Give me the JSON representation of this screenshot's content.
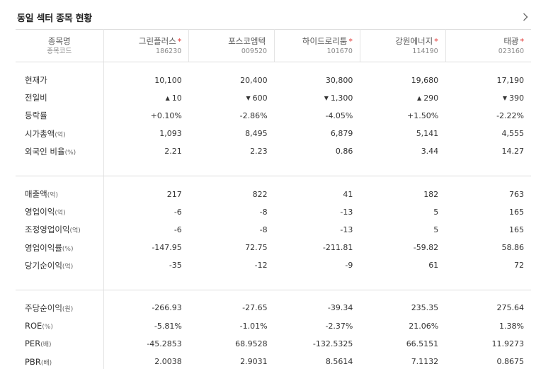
{
  "section": {
    "title": "동일 섹터 종목 현황",
    "more_icon": "chevron-right-icon"
  },
  "header": {
    "label_name": "종목명",
    "label_code": "종목코드"
  },
  "stocks": [
    {
      "name": "그린플러스",
      "code": "186230",
      "star": "*"
    },
    {
      "name": "포스코엠텍",
      "code": "009520",
      "star": ""
    },
    {
      "name": "하이드로리툼",
      "code": "101670",
      "star": "*"
    },
    {
      "name": "강원에너지",
      "code": "114190",
      "star": "*"
    },
    {
      "name": "태광",
      "code": "023160",
      "star": "*"
    }
  ],
  "colors": {
    "up": "#e0302e",
    "down": "#2a5fd0",
    "star": "#e0302e"
  },
  "groups": [
    {
      "rows": [
        {
          "label": "현재가",
          "unit": "",
          "values": [
            "10,100",
            "20,400",
            "30,800",
            "19,680",
            "17,190"
          ]
        },
        {
          "label": "전일비",
          "unit": "",
          "type": "change",
          "values": [
            {
              "dir": "up",
              "arrow": "▲",
              "text": "10"
            },
            {
              "dir": "down",
              "arrow": "▼",
              "text": "600"
            },
            {
              "dir": "down",
              "arrow": "▼",
              "text": "1,300"
            },
            {
              "dir": "up",
              "arrow": "▲",
              "text": "290"
            },
            {
              "dir": "down",
              "arrow": "▼",
              "text": "390"
            }
          ]
        },
        {
          "label": "등락률",
          "unit": "",
          "type": "rate",
          "values": [
            {
              "dir": "up",
              "text": "+0.10%"
            },
            {
              "dir": "down",
              "text": "-2.86%"
            },
            {
              "dir": "down",
              "text": "-4.05%"
            },
            {
              "dir": "up",
              "text": "+1.50%"
            },
            {
              "dir": "down",
              "text": "-2.22%"
            }
          ]
        },
        {
          "label": "시가총액",
          "unit": "(억)",
          "values": [
            "1,093",
            "8,495",
            "6,879",
            "5,141",
            "4,555"
          ]
        },
        {
          "label": "외국인 비율",
          "unit": "(%)",
          "values": [
            "2.21",
            "2.23",
            "0.86",
            "3.44",
            "14.27"
          ]
        }
      ]
    },
    {
      "rows": [
        {
          "label": "매출액",
          "unit": "(억)",
          "values": [
            "217",
            "822",
            "41",
            "182",
            "763"
          ]
        },
        {
          "label": "영업이익",
          "unit": "(억)",
          "values": [
            "-6",
            "-8",
            "-13",
            "5",
            "165"
          ]
        },
        {
          "label": "조정영업이익",
          "unit": "(억)",
          "values": [
            "-6",
            "-8",
            "-13",
            "5",
            "165"
          ]
        },
        {
          "label": "영업이익률",
          "unit": "(%)",
          "values": [
            "-147.95",
            "72.75",
            "-211.81",
            "-59.82",
            "58.86"
          ]
        },
        {
          "label": "당기순이익",
          "unit": "(억)",
          "values": [
            "-35",
            "-12",
            "-9",
            "61",
            "72"
          ]
        }
      ]
    },
    {
      "rows": [
        {
          "label": "주당순이익",
          "unit": "(원)",
          "values": [
            "-266.93",
            "-27.65",
            "-39.34",
            "235.35",
            "275.64"
          ]
        },
        {
          "label": "ROE",
          "unit": "(%)",
          "values": [
            "-5.81%",
            "-1.01%",
            "-2.37%",
            "21.06%",
            "1.38%"
          ]
        },
        {
          "label": "PER",
          "unit": "(배)",
          "values": [
            "-45.2853",
            "68.9528",
            "-132.5325",
            "66.5151",
            "11.9273"
          ]
        },
        {
          "label": "PBR",
          "unit": "(배)",
          "values": [
            "2.0038",
            "2.9031",
            "8.5614",
            "7.1132",
            "0.8675"
          ]
        }
      ]
    }
  ]
}
